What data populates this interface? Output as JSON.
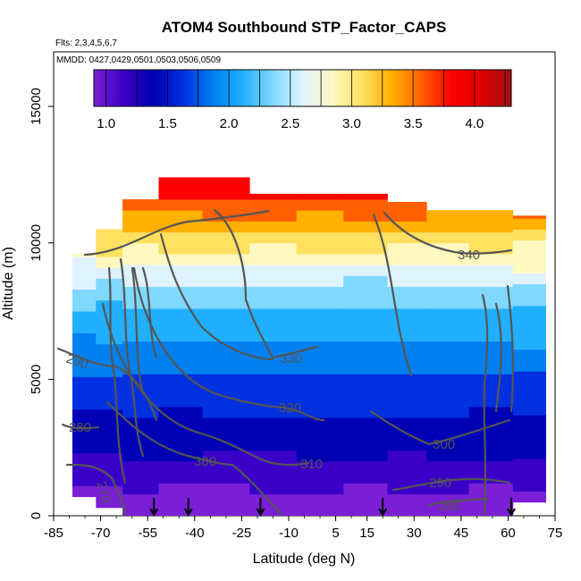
{
  "chart_data": {
    "type": "heatmap",
    "title": "ATOM4 Southbound STP_Factor_CAPS",
    "subtitle_flights": "Flts: 2,3,4,5,6,7",
    "subtitle_dates": "MMDD: 0427,0429,0501,0503,0506,0509",
    "xlabel": "Latitude (deg N)",
    "ylabel": "Altitude (m)",
    "xlim": [
      -85,
      75
    ],
    "ylim": [
      0,
      17000
    ],
    "x_tick_labels": [
      "-85",
      "-70",
      "-55",
      "-40",
      "-25",
      "-10",
      "5",
      "15",
      "30",
      "45",
      "60",
      "75"
    ],
    "y_tick_labels": [
      "0",
      "5000",
      "10000",
      "15000"
    ],
    "colorbar": {
      "range": [
        0.9,
        4.3
      ],
      "tick_labels": [
        "1.0",
        "1.5",
        "2.0",
        "2.5",
        "3.0",
        "3.5",
        "4.0"
      ],
      "colors": [
        "#7a1fd6",
        "#3a00c8",
        "#0000b4",
        "#0030e0",
        "#0080f0",
        "#20b0ff",
        "#80d8ff",
        "#dff2ff",
        "#fff8c0",
        "#ffe060",
        "#ffb000",
        "#ff6000",
        "#ff0000",
        "#e00000",
        "#a01010"
      ]
    },
    "contour_labels": [
      "340",
      "330",
      "320",
      "310",
      "300",
      "300",
      "290",
      "290",
      "280",
      "280",
      "270"
    ],
    "profile_columns": [
      {
        "lat": -75,
        "top": 9600,
        "bottom": 700
      },
      {
        "lat": -68,
        "top": 10500,
        "bottom": 300
      },
      {
        "lat": -58,
        "top": 11600,
        "bottom": 0
      },
      {
        "lat": -45,
        "top": 12400,
        "bottom": 0
      },
      {
        "lat": -30,
        "top": 12400,
        "bottom": 0
      },
      {
        "lat": -15,
        "top": 11800,
        "bottom": 0
      },
      {
        "lat": 0,
        "top": 11800,
        "bottom": 0
      },
      {
        "lat": 15,
        "top": 11800,
        "bottom": 0
      },
      {
        "lat": 28,
        "top": 11500,
        "bottom": 0
      },
      {
        "lat": 40,
        "top": 11200,
        "bottom": 0
      },
      {
        "lat": 55,
        "top": 11200,
        "bottom": 0
      },
      {
        "lat": 68,
        "top": 11000,
        "bottom": 500
      }
    ],
    "profile_markers_lat": [
      -53,
      -42,
      -19,
      20,
      61
    ],
    "grid": false,
    "legend": "top colorbar"
  }
}
